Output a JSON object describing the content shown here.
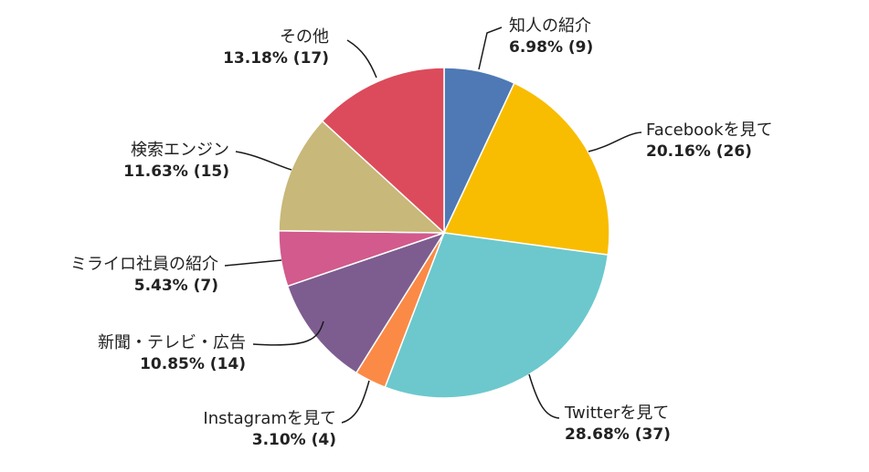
{
  "chart_data": {
    "type": "pie",
    "title": "",
    "start_angle_deg": 0,
    "direction": "clockwise",
    "slices": [
      {
        "label": "知人の紹介",
        "value": 9,
        "percent": "6.98%",
        "value_text": "6.98% (9)",
        "color": "#4e79b4"
      },
      {
        "label": "Facebookを見て",
        "value": 26,
        "percent": "20.16%",
        "value_text": "20.16% (26)",
        "color": "#f8bd00"
      },
      {
        "label": "Twitterを見て",
        "value": 37,
        "percent": "28.68%",
        "value_text": "28.68% (37)",
        "color": "#6cc8cd"
      },
      {
        "label": "Instagramを見て",
        "value": 4,
        "percent": "3.10%",
        "value_text": "3.10% (4)",
        "color": "#fb8a46"
      },
      {
        "label": "新聞・テレビ・広告",
        "value": 14,
        "percent": "10.85%",
        "value_text": "10.85% (14)",
        "color": "#7d5d8f"
      },
      {
        "label": "ミライロ社員の紹介",
        "value": 7,
        "percent": "5.43%",
        "value_text": "5.43% (7)",
        "color": "#d25a8d"
      },
      {
        "label": "検索エンジン",
        "value": 15,
        "percent": "11.63%",
        "value_text": "11.63% (15)",
        "color": "#c8b879"
      },
      {
        "label": "その他",
        "value": 17,
        "percent": "13.18%",
        "value_text": "13.18% (17)",
        "color": "#dc4b5b"
      }
    ]
  }
}
